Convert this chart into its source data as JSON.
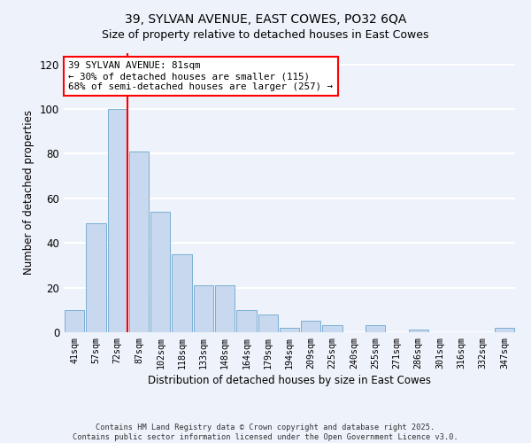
{
  "title": "39, SYLVAN AVENUE, EAST COWES, PO32 6QA",
  "subtitle": "Size of property relative to detached houses in East Cowes",
  "xlabel": "Distribution of detached houses by size in East Cowes",
  "ylabel": "Number of detached properties",
  "bar_labels": [
    "41sqm",
    "57sqm",
    "72sqm",
    "87sqm",
    "102sqm",
    "118sqm",
    "133sqm",
    "148sqm",
    "164sqm",
    "179sqm",
    "194sqm",
    "209sqm",
    "225sqm",
    "240sqm",
    "255sqm",
    "271sqm",
    "286sqm",
    "301sqm",
    "316sqm",
    "332sqm",
    "347sqm"
  ],
  "bar_values": [
    10,
    49,
    100,
    81,
    54,
    35,
    21,
    21,
    10,
    8,
    2,
    5,
    3,
    0,
    3,
    0,
    1,
    0,
    0,
    0,
    2
  ],
  "bar_color": "#c8d8ee",
  "bar_edge_color": "#7bafd4",
  "vline_x_index": 2,
  "vline_color": "red",
  "annotation_line1": "39 SYLVAN AVENUE: 81sqm",
  "annotation_line2": "← 30% of detached houses are smaller (115)",
  "annotation_line3": "68% of semi-detached houses are larger (257) →",
  "annotation_box_color": "white",
  "annotation_box_edge": "red",
  "ylim": [
    0,
    125
  ],
  "yticks": [
    0,
    20,
    40,
    60,
    80,
    100,
    120
  ],
  "footer_text": "Contains HM Land Registry data © Crown copyright and database right 2025.\nContains public sector information licensed under the Open Government Licence v3.0.",
  "background_color": "#eef2fa",
  "grid_color": "white",
  "title_fontsize": 10,
  "subtitle_fontsize": 9
}
